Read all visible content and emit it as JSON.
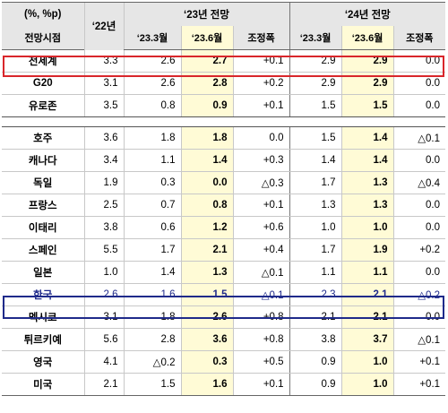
{
  "header": {
    "unit": "(%, %p)",
    "forecast_label": "전망시점",
    "y22": "‘22년",
    "y23": "‘23년 전망",
    "y24": "‘24년 전망",
    "sub": [
      "‘23.3월",
      "‘23.6월",
      "조정폭",
      "‘23.3월",
      "‘23.6월",
      "조정폭"
    ]
  },
  "group1": [
    {
      "name": "전세계",
      "y22": "3.3",
      "a": "2.6",
      "b": "2.7",
      "c": "+0.1",
      "d": "2.9",
      "e": "2.9",
      "f": "0.0"
    },
    {
      "name": "G20",
      "y22": "3.1",
      "a": "2.6",
      "b": "2.8",
      "c": "+0.2",
      "d": "2.9",
      "e": "2.9",
      "f": "0.0"
    },
    {
      "name": "유로존",
      "y22": "3.5",
      "a": "0.8",
      "b": "0.9",
      "c": "+0.1",
      "d": "1.5",
      "e": "1.5",
      "f": "0.0"
    }
  ],
  "group2": [
    {
      "name": "호주",
      "y22": "3.6",
      "a": "1.8",
      "b": "1.8",
      "c": "0.0",
      "d": "1.5",
      "e": "1.4",
      "f": "△0.1"
    },
    {
      "name": "캐나다",
      "y22": "3.4",
      "a": "1.1",
      "b": "1.4",
      "c": "+0.3",
      "d": "1.4",
      "e": "1.4",
      "f": "0.0"
    },
    {
      "name": "독일",
      "y22": "1.9",
      "a": "0.3",
      "b": "0.0",
      "c": "△0.3",
      "d": "1.7",
      "e": "1.3",
      "f": "△0.4"
    },
    {
      "name": "프랑스",
      "y22": "2.5",
      "a": "0.7",
      "b": "0.8",
      "c": "+0.1",
      "d": "1.3",
      "e": "1.3",
      "f": "0.0"
    },
    {
      "name": "이태리",
      "y22": "3.8",
      "a": "0.6",
      "b": "1.2",
      "c": "+0.6",
      "d": "1.0",
      "e": "1.0",
      "f": "0.0"
    },
    {
      "name": "스페인",
      "y22": "5.5",
      "a": "1.7",
      "b": "2.1",
      "c": "+0.4",
      "d": "1.7",
      "e": "1.9",
      "f": "+0.2"
    },
    {
      "name": "일본",
      "y22": "1.0",
      "a": "1.4",
      "b": "1.3",
      "c": "△0.1",
      "d": "1.1",
      "e": "1.1",
      "f": "0.0"
    },
    {
      "name": "한국",
      "y22": "2.6",
      "a": "1.6",
      "b": "1.5",
      "c": "△0.1",
      "d": "2.3",
      "e": "2.1",
      "f": "△0.2"
    },
    {
      "name": "멕시코",
      "y22": "3.1",
      "a": "1.8",
      "b": "2.6",
      "c": "+0.8",
      "d": "2.1",
      "e": "2.1",
      "f": "0.0"
    },
    {
      "name": "튀르키예",
      "y22": "5.6",
      "a": "2.8",
      "b": "3.6",
      "c": "+0.8",
      "d": "3.8",
      "e": "3.7",
      "f": "△0.1"
    },
    {
      "name": "영국",
      "y22": "4.1",
      "a": "△0.2",
      "b": "0.3",
      "c": "+0.5",
      "d": "0.9",
      "e": "1.0",
      "f": "+0.1"
    },
    {
      "name": "미국",
      "y22": "2.1",
      "a": "1.5",
      "b": "1.6",
      "c": "+0.1",
      "d": "0.9",
      "e": "1.0",
      "f": "+0.1"
    }
  ]
}
